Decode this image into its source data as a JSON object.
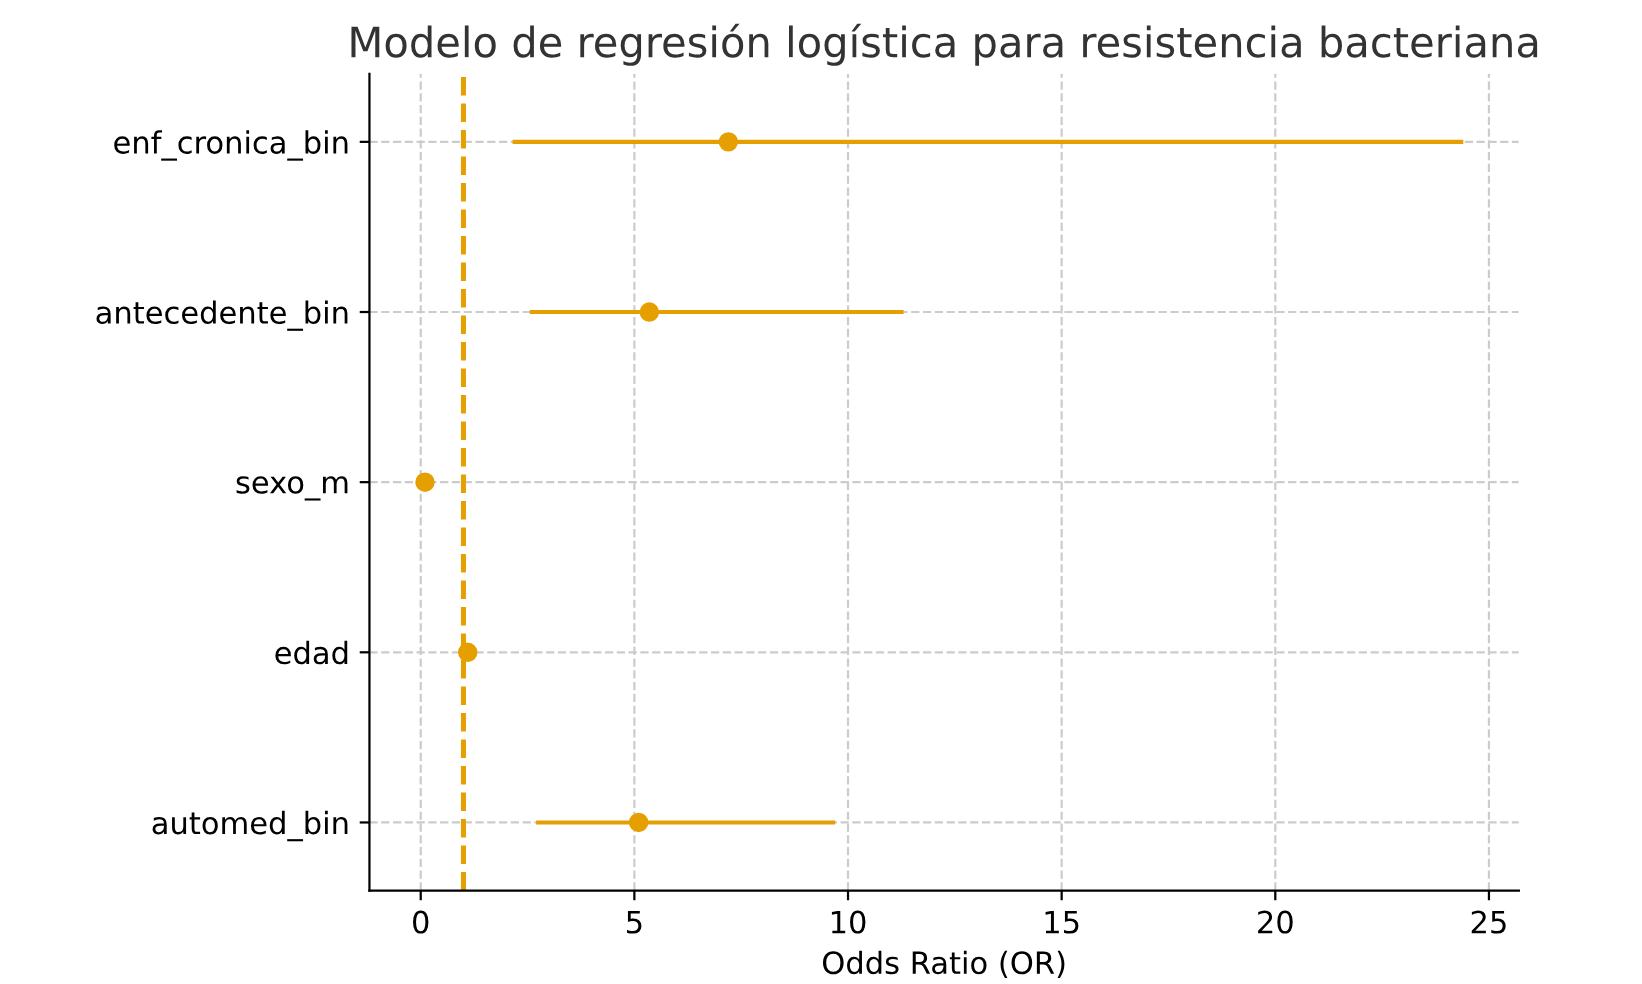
{
  "chart_data": {
    "type": "scatter",
    "orientation": "horizontal",
    "title": "Modelo de regresión logística para resistencia bacteriana",
    "xlabel": "Odds Ratio (OR)",
    "categories": [
      "enf_cronica_bin",
      "antecedente_bin",
      "sexo_m",
      "edad",
      "automed_bin"
    ],
    "series": [
      {
        "color": "#e69f00",
        "values": [
          7.2,
          5.35,
          0.1,
          1.1,
          5.1
        ],
        "errors": [
          [
            2.15,
            24.4
          ],
          [
            2.55,
            11.3
          ],
          null,
          null,
          [
            2.7,
            9.7
          ]
        ]
      }
    ],
    "ref_lines": [
      {
        "axis": "x",
        "value": 1,
        "color": "#e69f00",
        "line_style": "dashed"
      }
    ],
    "xlim": [
      -1.2,
      25.7
    ],
    "xticks": [
      0,
      5,
      10,
      15,
      20,
      25
    ],
    "grid": true,
    "marker": "circle"
  }
}
